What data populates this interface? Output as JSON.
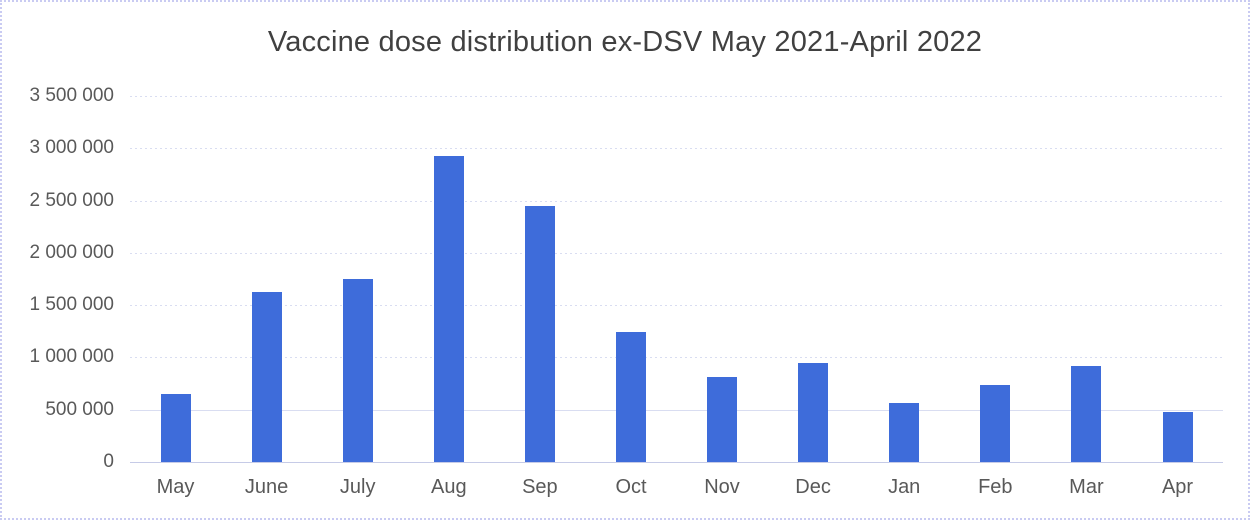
{
  "chart_data": {
    "type": "bar",
    "title": "Vaccine dose distribution ex-DSV May 2021-April 2022",
    "categories": [
      "May",
      "June",
      "July",
      "Aug",
      "Sep",
      "Oct",
      "Nov",
      "Dec",
      "Jan",
      "Feb",
      "Mar",
      "Apr"
    ],
    "values": [
      650000,
      1630000,
      1750000,
      2930000,
      2450000,
      1245000,
      810000,
      950000,
      560000,
      740000,
      920000,
      475000
    ],
    "y_tick_labels": [
      "3 500 000",
      "3 000 000",
      "2 500 000",
      "2 000 000",
      "1 500 000",
      "1 000 000",
      "500 000",
      "0"
    ],
    "ylim": [
      0,
      3500000
    ],
    "xlabel": "",
    "ylabel": "",
    "grid": "horizontal",
    "legend": "none",
    "colors": {
      "bar": "#3e6cda",
      "title_text": "#404040",
      "axis_text": "#595959",
      "gridline": "#d9ddf1",
      "baseline": "#c6cbe7",
      "border": "#c9cbf2",
      "background": "#ffffff"
    }
  }
}
